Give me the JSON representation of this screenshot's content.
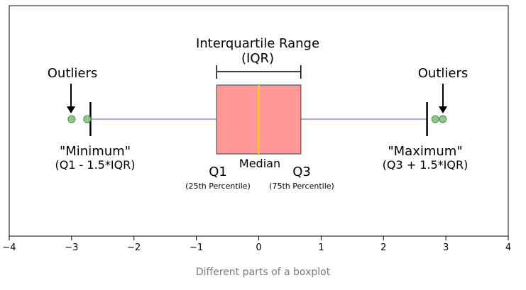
{
  "chart_data": {
    "type": "boxplot",
    "orientation": "horizontal",
    "xlim": [
      -4,
      4
    ],
    "x_ticks": [
      "−4",
      "−3",
      "−2",
      "−1",
      "0",
      "1",
      "2",
      "3",
      "4"
    ],
    "x_tick_values": [
      -4,
      -3,
      -2,
      -1,
      0,
      1,
      2,
      3,
      4
    ],
    "grid": false,
    "q1": -0.6745,
    "median": 0,
    "q3": 0.6745,
    "whisker_low": -2.698,
    "whisker_high": 2.698,
    "outliers_left": [
      -3.0,
      -2.75
    ],
    "outliers_right": [
      2.83,
      2.95
    ],
    "colors": {
      "box_fill": "#ff9999",
      "box_edge": "#6b6b6b",
      "median": "#ffd700",
      "whisker": "#8f8fe6",
      "outlier_fill": "#90c890",
      "outlier_edge": "#4a8a4a",
      "frame": "#333333"
    }
  },
  "labels": {
    "iqr_title": "Interquartile Range",
    "iqr_abbr": "(IQR)",
    "outliers_left": "Outliers",
    "outliers_right": "Outliers",
    "minimum": "\"Minimum\"",
    "minimum_formula": "(Q1 - 1.5*IQR)",
    "maximum": "\"Maximum\"",
    "maximum_formula": "(Q3 + 1.5*IQR)",
    "q1": "Q1",
    "q1_desc": "(25th Percentile)",
    "median": "Median",
    "q3": "Q3",
    "q3_desc": "(75th Percentile)"
  },
  "caption": "Different parts of a boxplot"
}
